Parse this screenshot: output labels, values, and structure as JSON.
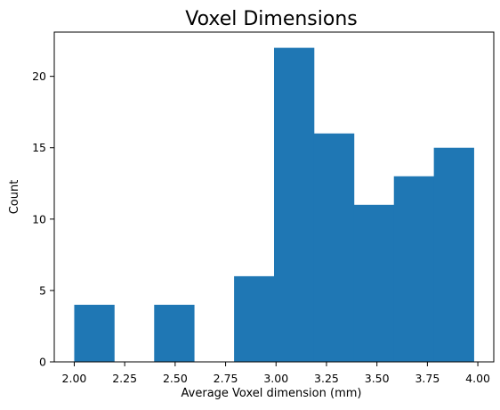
{
  "chart_data": {
    "type": "bar",
    "title": "Voxel Dimensions",
    "xlabel": "Average Voxel dimension (mm)",
    "ylabel": "Count",
    "bins": [
      {
        "start": 2.0,
        "end": 2.198,
        "count": 4
      },
      {
        "start": 2.198,
        "end": 2.396,
        "count": 0
      },
      {
        "start": 2.396,
        "end": 2.594,
        "count": 4
      },
      {
        "start": 2.594,
        "end": 2.792,
        "count": 0
      },
      {
        "start": 2.792,
        "end": 2.99,
        "count": 6
      },
      {
        "start": 2.99,
        "end": 3.188,
        "count": 22
      },
      {
        "start": 3.188,
        "end": 3.386,
        "count": 16
      },
      {
        "start": 3.386,
        "end": 3.584,
        "count": 11
      },
      {
        "start": 3.584,
        "end": 3.782,
        "count": 13
      },
      {
        "start": 3.782,
        "end": 3.98,
        "count": 15
      }
    ],
    "xlim": [
      1.901,
      4.079
    ],
    "ylim": [
      0,
      23.1
    ],
    "xticks": [
      2.0,
      2.25,
      2.5,
      2.75,
      3.0,
      3.25,
      3.5,
      3.75,
      4.0
    ],
    "xtick_labels": [
      "2.00",
      "2.25",
      "2.50",
      "2.75",
      "3.00",
      "3.25",
      "3.50",
      "3.75",
      "4.00"
    ],
    "yticks": [
      0,
      5,
      10,
      15,
      20
    ],
    "ytick_labels": [
      "0",
      "5",
      "10",
      "15",
      "20"
    ],
    "grid": false,
    "color": "#1f77b4"
  }
}
